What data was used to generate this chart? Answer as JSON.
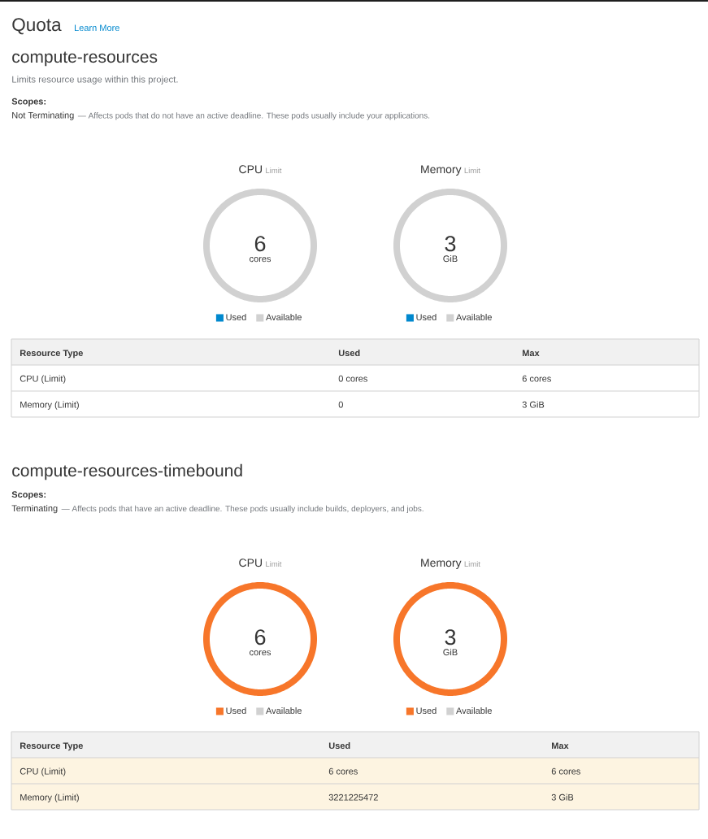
{
  "chart_data": [
    {
      "type": "other",
      "title": "Quota",
      "annotations": [
        "Learn More"
      ]
    },
    {
      "type": "other",
      "title": "compute-resources",
      "subtitle": "Limits resource usage within this project.",
      "annotations": [
        "Scopes:",
        "Not Terminating",
        "— Affects pods that do not have an active deadline. These pods usually include your applications."
      ]
    },
    {
      "type": "donut",
      "title": "CPU",
      "subtitle": "Limit",
      "annotations": [
        "6",
        "cores"
      ],
      "categories": [
        "Used",
        "Available"
      ],
      "values": [
        0,
        100
      ],
      "colors": [
        "#0088ce",
        "#d1d1d1"
      ],
      "legend": "bottom"
    },
    {
      "type": "donut",
      "title": "Memory",
      "subtitle": "Limit",
      "annotations": [
        "3",
        "GiB"
      ],
      "categories": [
        "Used",
        "Available"
      ],
      "values": [
        0,
        100
      ],
      "colors": [
        "#0088ce",
        "#d1d1d1"
      ],
      "legend": "bottom"
    },
    {
      "type": "other",
      "categories": [
        "Resource Type",
        "Used",
        "Max"
      ],
      "cell_labels": [
        [
          "CPU (Limit)",
          "0 cores",
          "6 cores"
        ],
        [
          "Memory (Limit)",
          "0",
          "3 GiB"
        ]
      ],
      "color": "#ffffff"
    },
    {
      "type": "other",
      "title": "compute-resources-timebound",
      "annotations": [
        "Scopes:",
        "Terminating",
        "— Affects pods that have an active deadline. These pods usually include builds, deployers, and jobs."
      ]
    },
    {
      "type": "donut",
      "title": "CPU",
      "subtitle": "Limit",
      "annotations": [
        "6",
        "cores"
      ],
      "categories": [
        "Used",
        "Available"
      ],
      "values": [
        100,
        0
      ],
      "colors": [
        "#f7762a",
        "#d1d1d1"
      ],
      "legend": "bottom"
    },
    {
      "type": "donut",
      "title": "Memory",
      "subtitle": "Limit",
      "annotations": [
        "3",
        "GiB"
      ],
      "categories": [
        "Used",
        "Available"
      ],
      "values": [
        100,
        0
      ],
      "colors": [
        "#f7762a",
        "#d1d1d1"
      ],
      "legend": "bottom"
    },
    {
      "type": "other",
      "categories": [
        "Resource Type",
        "Used",
        "Max"
      ],
      "cell_labels": [
        [
          "CPU (Limit)",
          "6 cores",
          "6 cores"
        ],
        [
          "Memory (Limit)",
          "3221225472",
          "3 GiB"
        ]
      ],
      "color": "#fdf4e1"
    }
  ]
}
